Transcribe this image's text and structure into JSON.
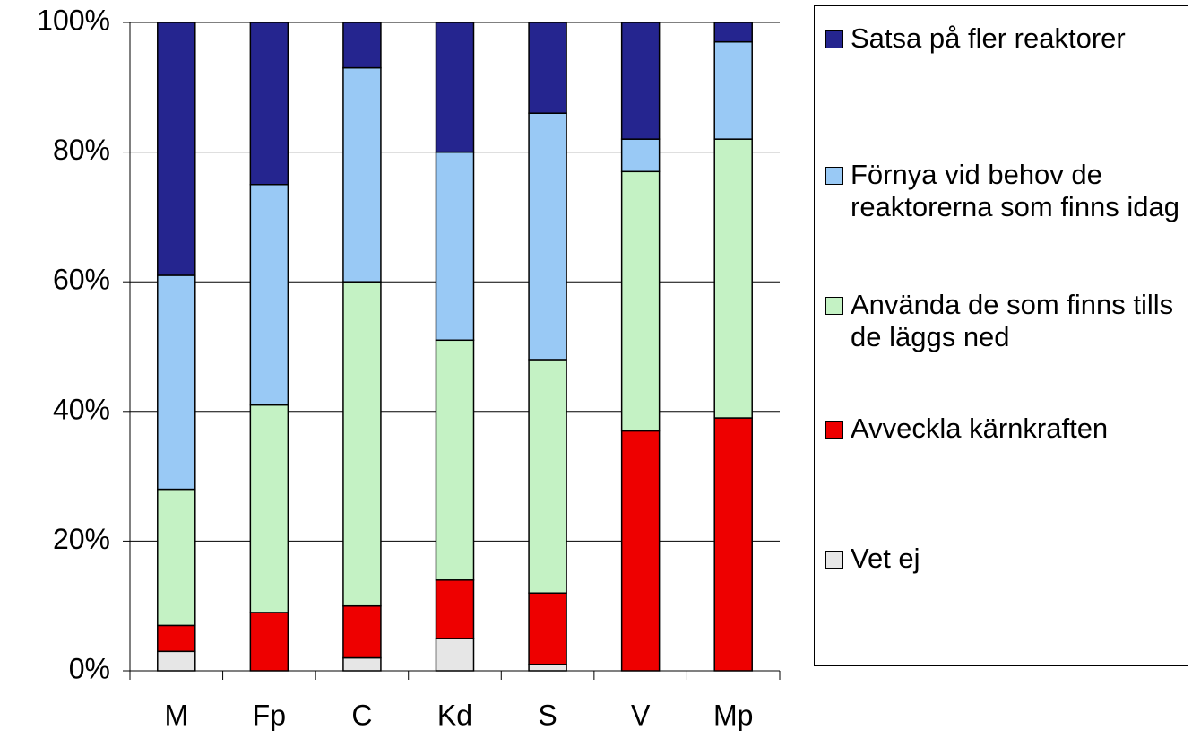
{
  "chart_data": {
    "type": "stacked_bar",
    "categories": [
      "M",
      "Fp",
      "C",
      "Kd",
      "S",
      "V",
      "Mp"
    ],
    "series": [
      {
        "name": "Vet ej",
        "color": "#e6e6e6",
        "values": [
          3,
          0,
          2,
          5,
          1,
          0,
          0
        ]
      },
      {
        "name": "Avveckla kärnkraften",
        "color": "#ee0000",
        "values": [
          4,
          9,
          8,
          9,
          11,
          37,
          39
        ]
      },
      {
        "name": "Använda de som finns tills de läggs ned",
        "color": "#c4f2c4",
        "values": [
          21,
          32,
          50,
          37,
          36,
          40,
          43
        ]
      },
      {
        "name": "Förnya vid behov de reaktorerna som finns idag",
        "color": "#99c9f5",
        "values": [
          33,
          34,
          33,
          29,
          38,
          5,
          15
        ]
      },
      {
        "name": "Satsa på fler reaktorer",
        "color": "#25258f",
        "values": [
          39,
          25,
          7,
          20,
          14,
          18,
          3
        ]
      }
    ],
    "ylim": [
      0,
      100
    ],
    "yticks": [
      {
        "value": 0,
        "label": "0%"
      },
      {
        "value": 20,
        "label": "20%"
      },
      {
        "value": 40,
        "label": "40%"
      },
      {
        "value": 60,
        "label": "60%"
      },
      {
        "value": 80,
        "label": "80%"
      },
      {
        "value": 100,
        "label": "100%"
      }
    ],
    "grid": true
  }
}
